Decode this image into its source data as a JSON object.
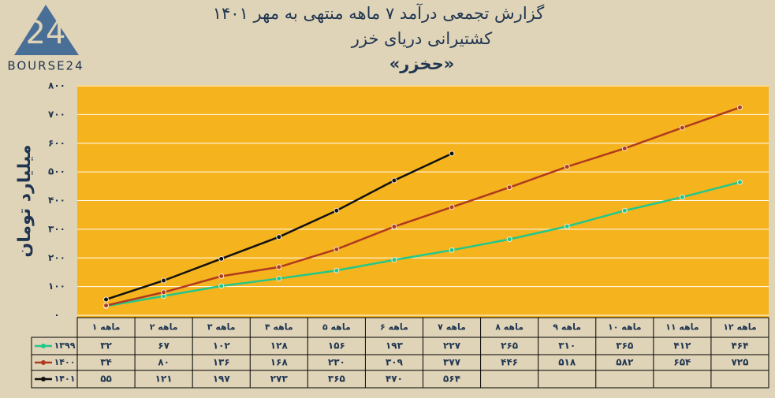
{
  "logo": {
    "mark": "24",
    "text": "BOURSE24"
  },
  "chart_data": {
    "type": "line",
    "title": "گزارش تجمعی درآمد ۷ ماهه منتهی به مهر ۱۴۰۱",
    "subtitle": "کشتیرانی دریای خزر",
    "ticker": "«حخزر»",
    "y_label": "میلیارد تومان",
    "categories": [
      "۱ ماهه",
      "۲ ماهه",
      "۳ ماهه",
      "۴ ماهه",
      "۵ ماهه",
      "۶ ماهه",
      "۷ ماهه",
      "۸ ماهه",
      "۹ ماهه",
      "۱۰ ماهه",
      "۱۱ ماهه",
      "۱۲ ماهه"
    ],
    "series": [
      {
        "name": "۱۳۹۹",
        "color": "#22c78a",
        "values": [
          32,
          67,
          102,
          128,
          156,
          193,
          227,
          265,
          310,
          365,
          412,
          464
        ],
        "value_labels": [
          "۳۲",
          "۶۷",
          "۱۰۲",
          "۱۲۸",
          "۱۵۶",
          "۱۹۳",
          "۲۲۷",
          "۲۶۵",
          "۳۱۰",
          "۳۶۵",
          "۴۱۲",
          "۴۶۴"
        ]
      },
      {
        "name": "۱۴۰۰",
        "color": "#b03a1e",
        "values": [
          34,
          80,
          136,
          168,
          230,
          309,
          377,
          446,
          518,
          582,
          654,
          725
        ],
        "value_labels": [
          "۳۴",
          "۸۰",
          "۱۳۶",
          "۱۶۸",
          "۲۳۰",
          "۳۰۹",
          "۳۷۷",
          "۴۴۶",
          "۵۱۸",
          "۵۸۲",
          "۶۵۴",
          "۷۲۵"
        ]
      },
      {
        "name": "۱۴۰۱",
        "color": "#111111",
        "values": [
          55,
          121,
          197,
          273,
          365,
          470,
          564,
          null,
          null,
          null,
          null,
          null
        ],
        "value_labels": [
          "۵۵",
          "۱۲۱",
          "۱۹۷",
          "۲۷۳",
          "۳۶۵",
          "۴۷۰",
          "۵۶۴",
          null,
          null,
          null,
          null,
          null
        ]
      }
    ],
    "ylim": [
      0,
      800
    ],
    "yticks": [
      {
        "value": 0,
        "label": "۰"
      },
      {
        "value": 100,
        "label": "۱۰۰"
      },
      {
        "value": 200,
        "label": "۲۰۰"
      },
      {
        "value": 300,
        "label": "۳۰۰"
      },
      {
        "value": 400,
        "label": "۴۰۰"
      },
      {
        "value": 500,
        "label": "۵۰۰"
      },
      {
        "value": 600,
        "label": "۶۰۰"
      },
      {
        "value": 700,
        "label": "۷۰۰"
      },
      {
        "value": 800,
        "label": "۸۰۰"
      }
    ],
    "grid": true
  }
}
